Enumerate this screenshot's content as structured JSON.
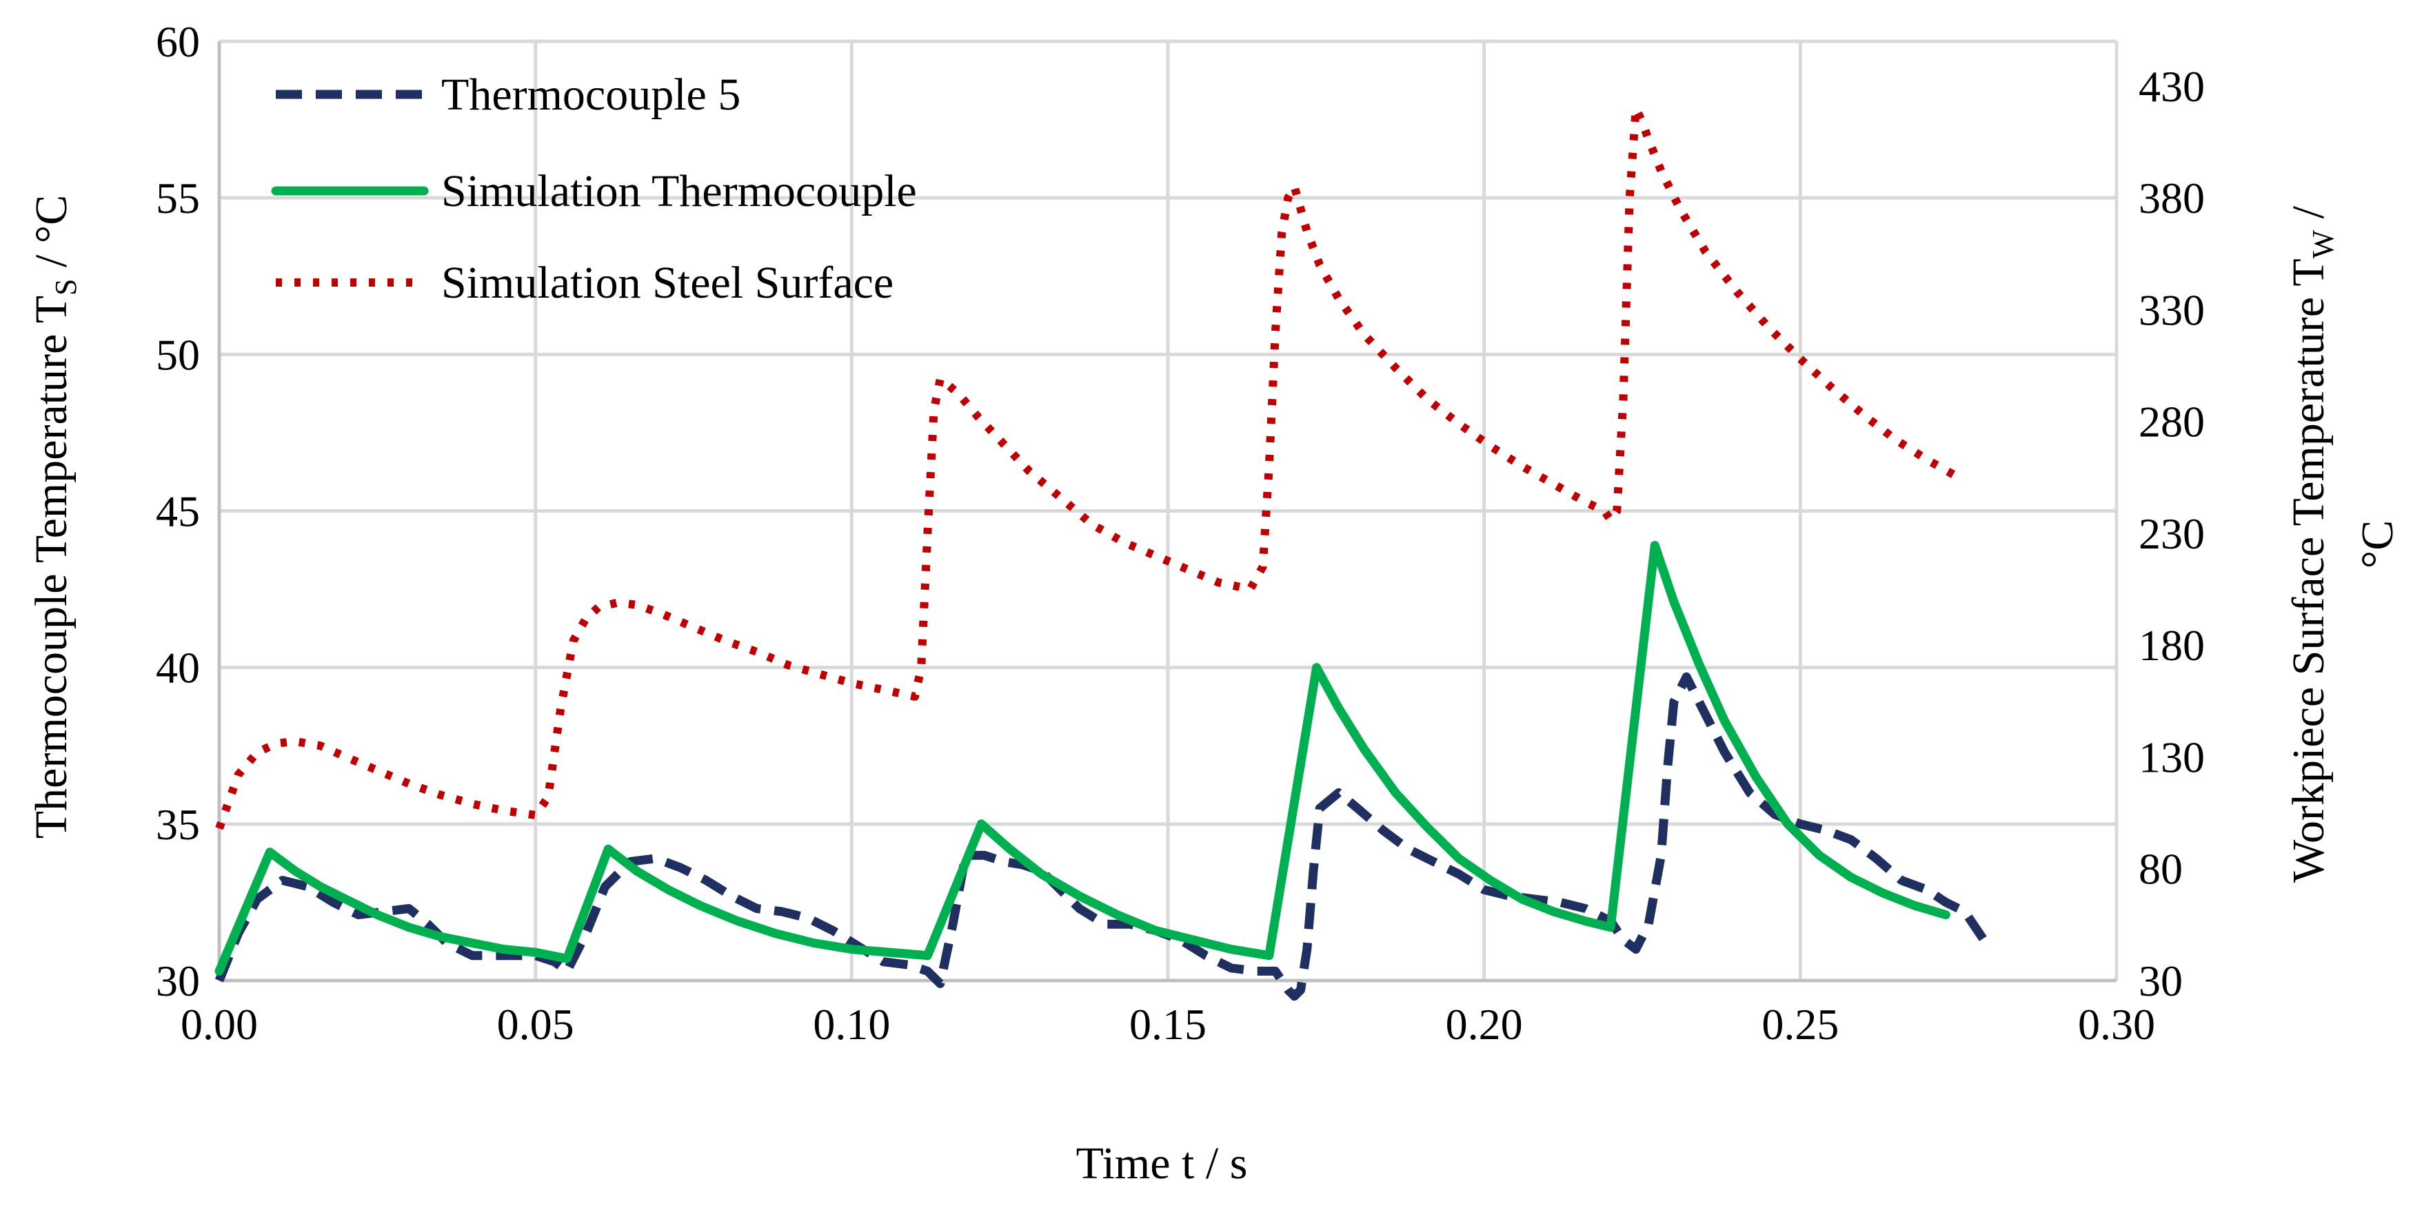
{
  "chart_data": {
    "type": "line",
    "title": "",
    "xlabel": "Time t / s",
    "ylabel": {
      "main": "Thermocouple Temperature T",
      "sub": "S",
      "unit": " / °C"
    },
    "y2label": {
      "main": "Workpiece Surface Temperature T",
      "sub": "W",
      "unit": " /",
      "line2": "°C"
    },
    "xlim": [
      0,
      0.3
    ],
    "ylim": [
      30,
      60
    ],
    "y2lim": [
      30,
      450
    ],
    "xticks": [
      "0.00",
      "0.05",
      "0.10",
      "0.15",
      "0.20",
      "0.25",
      "0.30"
    ],
    "yticks": [
      "30",
      "35",
      "40",
      "45",
      "50",
      "55",
      "60"
    ],
    "y2ticks": [
      "30",
      "80",
      "130",
      "180",
      "230",
      "280",
      "330",
      "380",
      "430"
    ],
    "grid": true,
    "legend_position": "top-left",
    "series": [
      {
        "name": "Thermocouple 5",
        "axis": "left",
        "color": "#1f3060",
        "style": "dashed",
        "x": [
          0.0,
          0.003,
          0.006,
          0.01,
          0.014,
          0.018,
          0.022,
          0.026,
          0.03,
          0.033,
          0.036,
          0.04,
          0.045,
          0.05,
          0.053,
          0.055,
          0.058,
          0.061,
          0.065,
          0.069,
          0.073,
          0.077,
          0.081,
          0.085,
          0.089,
          0.093,
          0.097,
          0.101,
          0.105,
          0.109,
          0.112,
          0.114,
          0.116,
          0.118,
          0.121,
          0.124,
          0.127,
          0.13,
          0.133,
          0.136,
          0.14,
          0.144,
          0.148,
          0.152,
          0.156,
          0.16,
          0.164,
          0.167,
          0.169,
          0.17,
          0.171,
          0.172,
          0.173,
          0.174,
          0.177,
          0.18,
          0.184,
          0.188,
          0.192,
          0.196,
          0.2,
          0.204,
          0.208,
          0.212,
          0.216,
          0.22,
          0.222,
          0.224,
          0.226,
          0.228,
          0.229,
          0.23,
          0.232,
          0.235,
          0.238,
          0.242,
          0.246,
          0.25,
          0.254,
          0.258,
          0.262,
          0.266,
          0.27,
          0.273,
          0.276,
          0.279
        ],
        "y": [
          30.0,
          31.5,
          32.6,
          33.2,
          33.0,
          32.5,
          32.1,
          32.2,
          32.3,
          31.8,
          31.2,
          30.8,
          30.8,
          30.8,
          30.6,
          30.3,
          31.5,
          33.0,
          33.8,
          33.9,
          33.6,
          33.2,
          32.7,
          32.3,
          32.2,
          32.0,
          31.6,
          31.1,
          30.6,
          30.5,
          30.3,
          29.9,
          31.8,
          34.0,
          34.0,
          33.8,
          33.7,
          33.5,
          32.9,
          32.3,
          31.8,
          31.8,
          31.6,
          31.3,
          30.8,
          30.4,
          30.3,
          30.3,
          29.7,
          29.5,
          29.7,
          31.0,
          33.5,
          35.5,
          36.0,
          35.5,
          34.8,
          34.2,
          33.8,
          33.4,
          32.9,
          32.7,
          32.6,
          32.5,
          32.3,
          31.9,
          31.3,
          31.0,
          31.8,
          34.0,
          36.8,
          38.9,
          39.7,
          38.5,
          37.3,
          36.0,
          35.3,
          35.0,
          34.8,
          34.5,
          33.9,
          33.2,
          32.9,
          32.5,
          32.2,
          31.3
        ]
      },
      {
        "name": "Simulation Thermocouple",
        "axis": "left",
        "color": "#00b050",
        "style": "solid",
        "x": [
          0.0,
          0.008,
          0.012,
          0.016,
          0.02,
          0.025,
          0.03,
          0.035,
          0.04,
          0.045,
          0.05,
          0.055,
          0.0615,
          0.066,
          0.071,
          0.076,
          0.082,
          0.088,
          0.094,
          0.1,
          0.106,
          0.112,
          0.1205,
          0.125,
          0.13,
          0.136,
          0.142,
          0.148,
          0.154,
          0.16,
          0.166,
          0.1735,
          0.177,
          0.181,
          0.186,
          0.191,
          0.196,
          0.201,
          0.206,
          0.211,
          0.216,
          0.22,
          0.227,
          0.23,
          0.234,
          0.238,
          0.243,
          0.248,
          0.253,
          0.258,
          0.263,
          0.268,
          0.273
        ],
        "y": [
          30.3,
          34.1,
          33.5,
          33.0,
          32.6,
          32.1,
          31.7,
          31.4,
          31.2,
          31.0,
          30.9,
          30.7,
          34.2,
          33.5,
          32.9,
          32.4,
          31.9,
          31.5,
          31.2,
          31.0,
          30.9,
          30.8,
          35.0,
          34.2,
          33.4,
          32.7,
          32.1,
          31.6,
          31.3,
          31.0,
          30.8,
          40.0,
          38.7,
          37.4,
          36.0,
          34.9,
          33.9,
          33.2,
          32.6,
          32.2,
          31.9,
          31.7,
          43.9,
          42.1,
          40.1,
          38.3,
          36.5,
          35.0,
          34.0,
          33.3,
          32.8,
          32.4,
          32.1
        ]
      },
      {
        "name": "Simulation Steel Surface",
        "axis": "right",
        "color": "#c00000",
        "style": "dotted",
        "x": [
          0.0,
          0.003,
          0.006,
          0.009,
          0.012,
          0.016,
          0.02,
          0.025,
          0.03,
          0.035,
          0.04,
          0.045,
          0.05,
          0.052,
          0.054,
          0.056,
          0.058,
          0.06,
          0.063,
          0.066,
          0.07,
          0.075,
          0.08,
          0.085,
          0.09,
          0.095,
          0.1,
          0.105,
          0.11,
          0.111,
          0.112,
          0.113,
          0.114,
          0.115,
          0.117,
          0.12,
          0.124,
          0.128,
          0.133,
          0.138,
          0.143,
          0.148,
          0.153,
          0.158,
          0.163,
          0.165,
          0.166,
          0.167,
          0.168,
          0.169,
          0.17,
          0.171,
          0.172,
          0.174,
          0.177,
          0.181,
          0.186,
          0.191,
          0.196,
          0.201,
          0.206,
          0.211,
          0.216,
          0.219,
          0.22,
          0.221,
          0.222,
          0.223,
          0.224,
          0.225,
          0.226,
          0.228,
          0.231,
          0.235,
          0.24,
          0.245,
          0.25,
          0.255,
          0.26,
          0.265,
          0.27,
          0.275
        ],
        "y": [
          98,
          122,
          132,
          136,
          137,
          135,
          130,
          124,
          118,
          113,
          109,
          106,
          104,
          112,
          152,
          182,
          192,
          197,
          199,
          198,
          194,
          188,
          182,
          177,
          171,
          167,
          163,
          160,
          157,
          170,
          230,
          285,
          299,
          297,
          292,
          282,
          270,
          258,
          246,
          234,
          226,
          220,
          214,
          208,
          205,
          215,
          260,
          320,
          364,
          380,
          385,
          375,
          365,
          350,
          335,
          319,
          304,
          290,
          279,
          269,
          260,
          252,
          244,
          240,
          236,
          240,
          290,
          380,
          420,
          414,
          406,
          392,
          375,
          356,
          338,
          322,
          308,
          295,
          283,
          272,
          263,
          255
        ]
      }
    ]
  }
}
